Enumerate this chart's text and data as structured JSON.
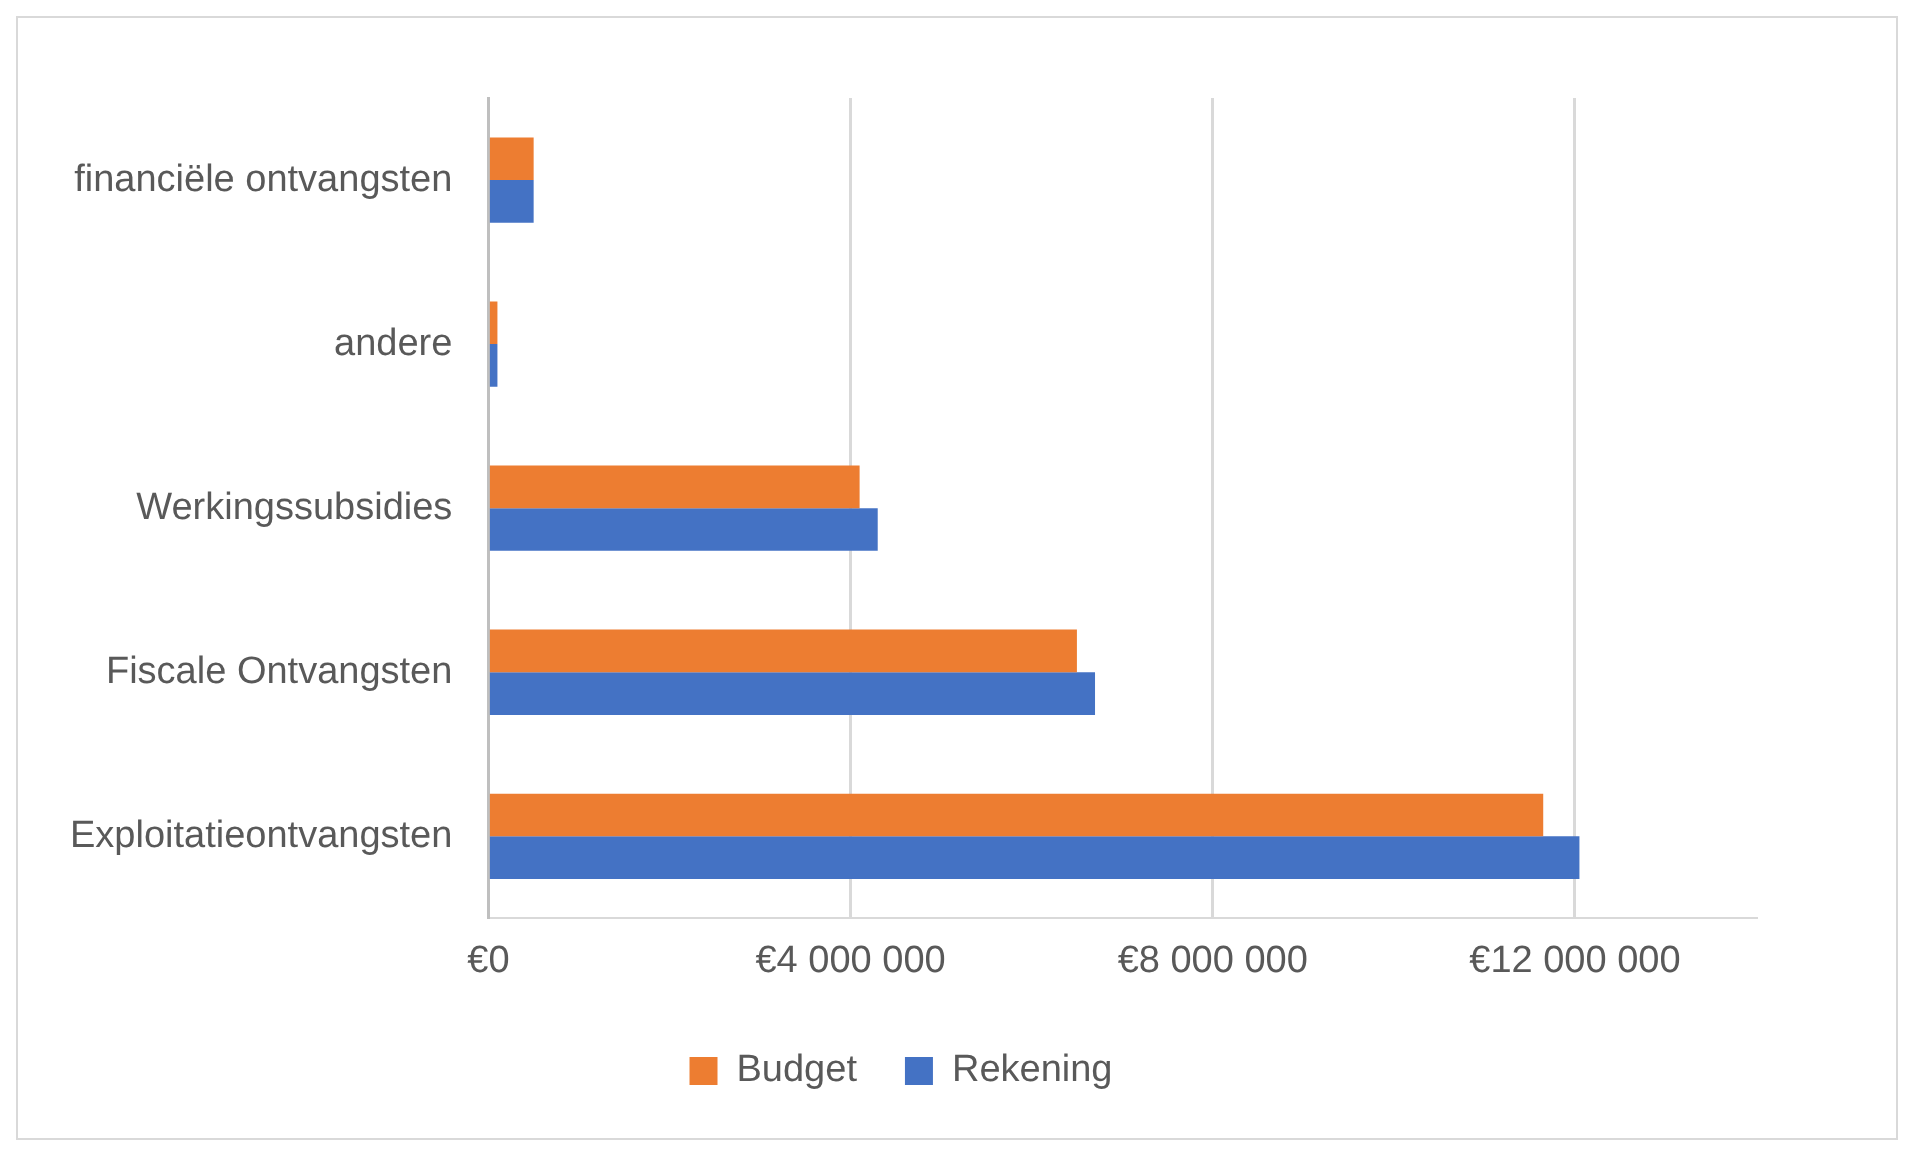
{
  "chart_data": {
    "type": "bar",
    "orientation": "horizontal",
    "categories": [
      "financiële ontvangsten",
      "andere",
      "Werkingssubsidies",
      "Fiscale Ontvangsten",
      "Exploitatieontvangsten"
    ],
    "series": [
      {
        "name": "Budget",
        "color": "#ed7d31",
        "values": [
          500000,
          100000,
          4100000,
          6500000,
          11650000
        ]
      },
      {
        "name": "Rekening",
        "color": "#4472c4",
        "values": [
          500000,
          100000,
          4300000,
          6700000,
          12050000
        ]
      }
    ],
    "xlim": [
      0,
      14000000
    ],
    "xticks": [
      {
        "value": 0,
        "label": "€0"
      },
      {
        "value": 4000000,
        "label": "€4 000 000"
      },
      {
        "value": 8000000,
        "label": "€8 000 000"
      },
      {
        "value": 12000000,
        "label": "€12 000 000"
      }
    ],
    "grid": "x",
    "legend": "bottom"
  }
}
